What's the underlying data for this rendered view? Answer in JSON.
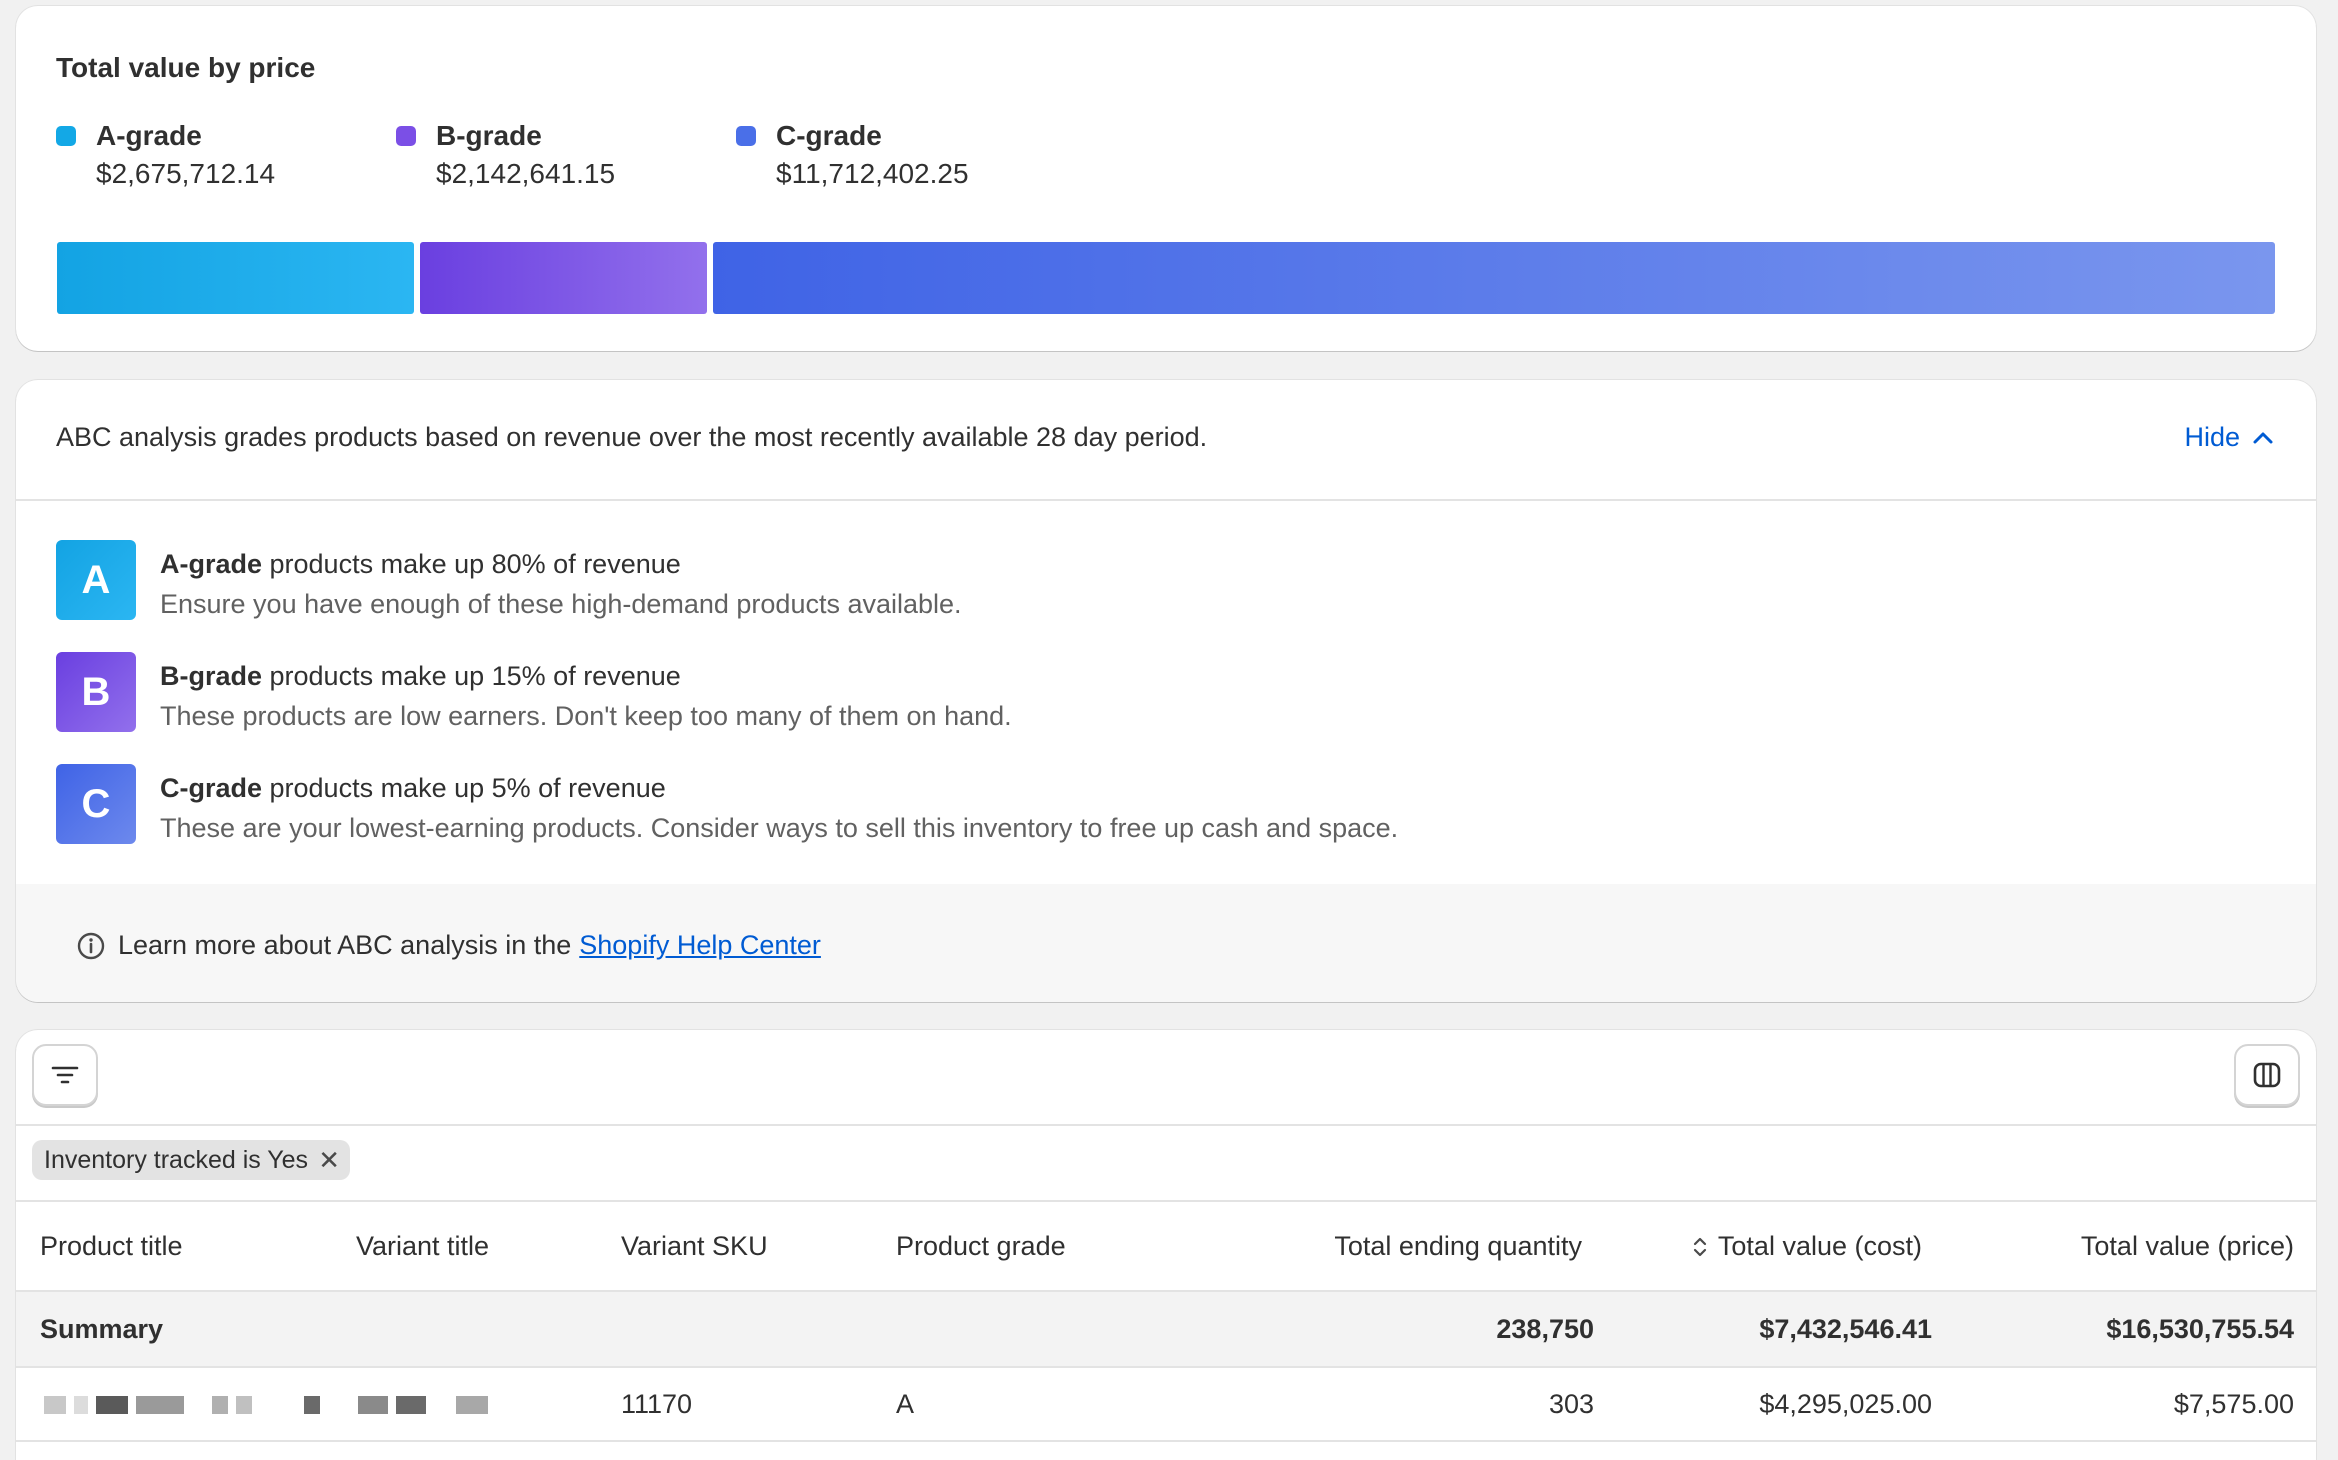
{
  "value_card": {
    "title": "Total value by price",
    "legend": [
      {
        "name": "A-grade",
        "value": "$2,675,712.14",
        "color": "#13a8e6"
      },
      {
        "name": "B-grade",
        "value": "$2,142,641.15",
        "color": "#7b4fe6"
      },
      {
        "name": "C-grade",
        "value": "$11,712,402.25",
        "color": "#4a6fe8"
      }
    ],
    "bar_fractions": [
      0.162,
      0.13,
      0.708
    ]
  },
  "abc_card": {
    "intro": "ABC analysis grades products based on revenue over the most recently available 28 day period.",
    "hide_label": "Hide",
    "grades": [
      {
        "letter": "A",
        "name": "A-grade",
        "headline": " products make up 80% of revenue",
        "detail": "Ensure you have enough of these high-demand products available."
      },
      {
        "letter": "B",
        "name": "B-grade",
        "headline": " products make up 15% of revenue",
        "detail": "These products are low earners. Don't keep too many of them on hand."
      },
      {
        "letter": "C",
        "name": "C-grade",
        "headline": " products make up 5% of revenue",
        "detail": "These are your lowest-earning products. Consider ways to sell this inventory to free up cash and space."
      }
    ],
    "learn_text": "Learn more about ABC analysis in the",
    "learn_link": "Shopify Help Center"
  },
  "table_card": {
    "filter_icon": "filter-icon",
    "columns_icon": "columns-icon",
    "chip_label": "Inventory tracked is Yes",
    "headers": [
      "Product title",
      "Variant title",
      "Variant SKU",
      "Product grade",
      "Total ending quantity",
      "Total value (cost)",
      "Total value (price)"
    ],
    "summary": {
      "label": "Summary",
      "quantity": "238,750",
      "cost": "$7,432,546.41",
      "price": "$16,530,755.54"
    },
    "rows": [
      {
        "sku": "11170",
        "grade": "A",
        "quantity": "303",
        "cost": "$4,295,025.00",
        "price": "$7,575.00"
      }
    ]
  }
}
